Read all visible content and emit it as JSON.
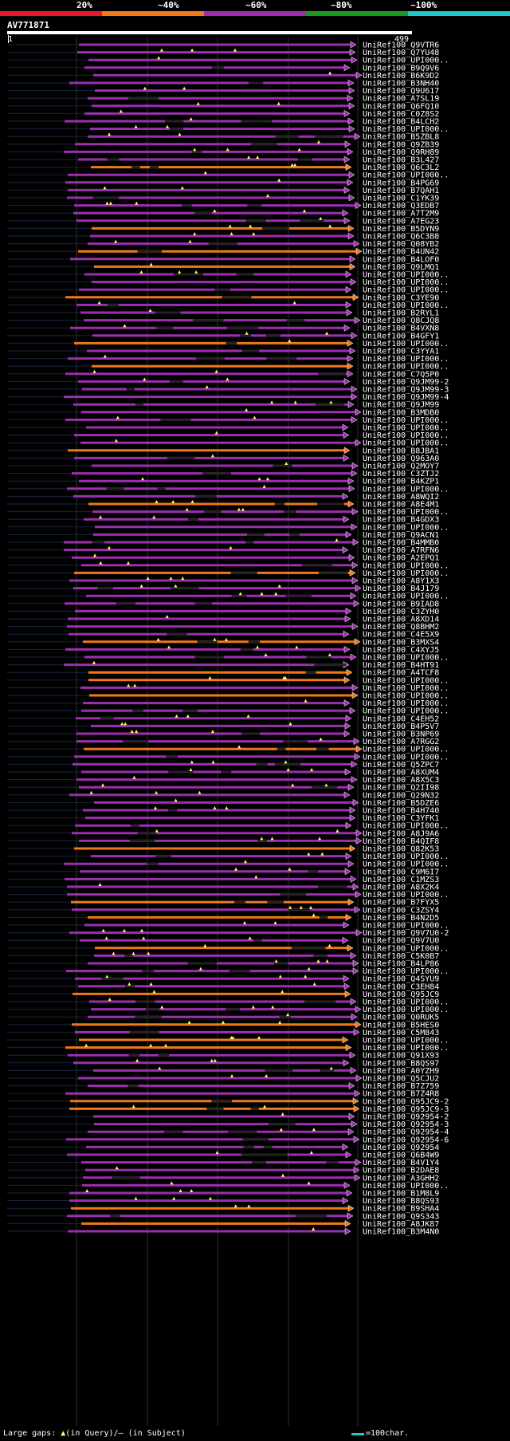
{
  "query": {
    "accession": "AV771871",
    "start_label": "1",
    "end_label": "499",
    "length": 499
  },
  "identity_scale": [
    {
      "label": "20%",
      "color": "#e8192c"
    },
    {
      "label": "~40%",
      "color": "#f07818"
    },
    {
      "label": "~60%",
      "color": "#9b2fae"
    },
    {
      "label": "~80%",
      "color": "#1a9a22"
    },
    {
      "label": "~100%",
      "color": "#1ec8c8"
    }
  ],
  "legend": {
    "prefix": "Large gaps:",
    "query_gap": "(in Query)/",
    "subject_gap": "(in Subject)",
    "scale_text": "=100char."
  },
  "hits": [
    {
      "name": "UniRef100_Q9VTR6",
      "identity": "~60%"
    },
    {
      "name": "UniRef100_Q7YU48",
      "identity": "~60%"
    },
    {
      "name": "UniRef100_UPI000..",
      "identity": "~60%"
    },
    {
      "name": "UniRef100_B9Q9V6",
      "identity": "~60%"
    },
    {
      "name": "UniRef100_B6K9D2",
      "identity": "~60%"
    },
    {
      "name": "UniRef100_B3NH40",
      "identity": "~60%"
    },
    {
      "name": "UniRef100_Q9U617",
      "identity": "~60%"
    },
    {
      "name": "UniRef100_A7SL19",
      "identity": "~60%"
    },
    {
      "name": "UniRef100_Q6FQ10",
      "identity": "~60%"
    },
    {
      "name": "UniRef100_C0Z8S2",
      "identity": "~60%"
    },
    {
      "name": "UniRef100_B4LCH2",
      "identity": "~60%"
    },
    {
      "name": "UniRef100_UPI000..",
      "identity": "~60%"
    },
    {
      "name": "UniRef100_B5ZBL8",
      "identity": "~60%"
    },
    {
      "name": "UniRef100_Q9ZB39",
      "identity": "~60%"
    },
    {
      "name": "UniRef100_Q9RH89",
      "identity": "~60%"
    },
    {
      "name": "UniRef100_B3L427",
      "identity": "~60%"
    },
    {
      "name": "UniRef100_Q6C3L2",
      "identity": "~40%"
    },
    {
      "name": "UniRef100_UPI000..",
      "identity": "~60%"
    },
    {
      "name": "UniRef100_B4PG69",
      "identity": "~60%"
    },
    {
      "name": "UniRef100_B7QAH1",
      "identity": "~60%"
    },
    {
      "name": "UniRef100_C1YK39",
      "identity": "~60%"
    },
    {
      "name": "UniRef100_Q3EDB7",
      "identity": "~60%"
    },
    {
      "name": "UniRef100_A7T2M9",
      "identity": "~60%"
    },
    {
      "name": "UniRef100_A7EG23",
      "identity": "~60%"
    },
    {
      "name": "UniRef100_B5DYN9",
      "identity": "~40%"
    },
    {
      "name": "UniRef100_Q6C3B8",
      "identity": "~60%"
    },
    {
      "name": "UniRef100_Q08YB2",
      "identity": "~60%"
    },
    {
      "name": "UniRef100_B4UN42",
      "identity": "~40%"
    },
    {
      "name": "UniRef100_B4LOF0",
      "identity": "~60%"
    },
    {
      "name": "UniRef100_Q9LMQ1",
      "identity": "~40%"
    },
    {
      "name": "UniRef100_UPI000..",
      "identity": "~60%"
    },
    {
      "name": "UniRef100_UPI000..",
      "identity": "~60%"
    },
    {
      "name": "UniRef100_UPI000..",
      "identity": "~60%"
    },
    {
      "name": "UniRef100_C3YE90",
      "identity": "~40%"
    },
    {
      "name": "UniRef100_UPI000..",
      "identity": "~60%"
    },
    {
      "name": "UniRef100_B2RYL1",
      "identity": "~60%"
    },
    {
      "name": "UniRef100_Q8CJQ8",
      "identity": "~60%"
    },
    {
      "name": "UniRef100_B4VXN8",
      "identity": "~60%"
    },
    {
      "name": "UniRef100_B4GFY1",
      "identity": "~60%"
    },
    {
      "name": "UniRef100_UPI000..",
      "identity": "~40%"
    },
    {
      "name": "UniRef100_C3YYA1",
      "identity": "~60%"
    },
    {
      "name": "UniRef100_UPI000..",
      "identity": "~60%"
    },
    {
      "name": "UniRef100_UPI000..",
      "identity": "~40%"
    },
    {
      "name": "UniRef100_C7Q5P0",
      "identity": "~60%"
    },
    {
      "name": "UniRef100_Q9JM99-2",
      "identity": "~60%"
    },
    {
      "name": "UniRef100_Q9JM99-3",
      "identity": "~60%"
    },
    {
      "name": "UniRef100_Q9JM99-4",
      "identity": "~60%"
    },
    {
      "name": "UniRef100_Q9JM99",
      "identity": "~60%"
    },
    {
      "name": "UniRef100_B3MDB0",
      "identity": "~60%"
    },
    {
      "name": "UniRef100_UPI000..",
      "identity": "~60%"
    },
    {
      "name": "UniRef100_UPI000..",
      "identity": "~60%"
    },
    {
      "name": "UniRef100_UPI000..",
      "identity": "~60%"
    },
    {
      "name": "UniRef100_UPI000..",
      "identity": "~60%"
    },
    {
      "name": "UniRef100_B8JBA1",
      "identity": "~40%"
    },
    {
      "name": "UniRef100_Q963A0",
      "identity": "~60%"
    },
    {
      "name": "UniRef100_Q2MOY7",
      "identity": "~60%"
    },
    {
      "name": "UniRef100_C3ZTJ2",
      "identity": "~60%"
    },
    {
      "name": "UniRef100_B4KZP1",
      "identity": "~60%"
    },
    {
      "name": "UniRef100_UPI000..",
      "identity": "~60%"
    },
    {
      "name": "UniRef100_A8WQI2",
      "identity": "~60%"
    },
    {
      "name": "UniRef100_A8E4M1",
      "identity": "~40%"
    },
    {
      "name": "UniRef100_UPI000..",
      "identity": "~60%"
    },
    {
      "name": "UniRef100_B4GDX3",
      "identity": "~60%"
    },
    {
      "name": "UniRef100_UPI000..",
      "identity": "~60%"
    },
    {
      "name": "UniRef100_Q9ACN1",
      "identity": "~60%"
    },
    {
      "name": "UniRef100_B4MMB0",
      "identity": "~60%"
    },
    {
      "name": "UniRef100_A7RFN6",
      "identity": "~60%"
    },
    {
      "name": "UniRef100_A2EPQ1",
      "identity": "~60%"
    },
    {
      "name": "UniRef100_UPI000..",
      "identity": "~60%"
    },
    {
      "name": "UniRef100_UPI000..",
      "identity": "~40%"
    },
    {
      "name": "UniRef100_A8Y1X3",
      "identity": "~60%"
    },
    {
      "name": "UniRef100_B4J179",
      "identity": "~60%"
    },
    {
      "name": "UniRef100_UPI000..",
      "identity": "~60%"
    },
    {
      "name": "UniRef100_B9IAD8",
      "identity": "~60%"
    },
    {
      "name": "UniRef100_C3ZYH0",
      "identity": "~60%"
    },
    {
      "name": "UniRef100_A8XD14",
      "identity": "~60%"
    },
    {
      "name": "UniRef100_Q8BHM2",
      "identity": "~60%"
    },
    {
      "name": "UniRef100_C4E5X9",
      "identity": "~60%"
    },
    {
      "name": "UniRef100_B3MXS4",
      "identity": "~40%"
    },
    {
      "name": "UniRef100_C4XYJ5",
      "identity": "~60%"
    },
    {
      "name": "UniRef100_UPI000..",
      "identity": "~60%"
    },
    {
      "name": "UniRef100_B4HT91",
      "identity": "~60%"
    },
    {
      "name": "UniRef100_A4TCF8",
      "identity": "~40%"
    },
    {
      "name": "UniRef100_UPI000..",
      "identity": "~40%"
    },
    {
      "name": "UniRef100_UPI000..",
      "identity": "~60%"
    },
    {
      "name": "UniRef100_UPI000..",
      "identity": "~40%"
    },
    {
      "name": "UniRef100_UPI000..",
      "identity": "~60%"
    },
    {
      "name": "UniRef100_UPI000..",
      "identity": "~60%"
    },
    {
      "name": "UniRef100_C4EH52",
      "identity": "~60%"
    },
    {
      "name": "UniRef100_B4P5V7",
      "identity": "~60%"
    },
    {
      "name": "UniRef100_B3NP69",
      "identity": "~60%"
    },
    {
      "name": "UniRef100_A7RGG2",
      "identity": "~60%"
    },
    {
      "name": "UniRef100_UPI000..",
      "identity": "~40%"
    },
    {
      "name": "UniRef100_UPI000..",
      "identity": "~60%"
    },
    {
      "name": "UniRef100_Q5ZPC7",
      "identity": "~60%"
    },
    {
      "name": "UniRef100_A8XUM4",
      "identity": "~60%"
    },
    {
      "name": "UniRef100_A8X5C3",
      "identity": "~60%"
    },
    {
      "name": "UniRef100_Q2II98",
      "identity": "~60%"
    },
    {
      "name": "UniRef100_Q29N32",
      "identity": "~60%"
    },
    {
      "name": "UniRef100_B5DZE6",
      "identity": "~60%"
    },
    {
      "name": "UniRef100_B4H740",
      "identity": "~60%"
    },
    {
      "name": "UniRef100_C3YFK1",
      "identity": "~60%"
    },
    {
      "name": "UniRef100_UPI000..",
      "identity": "~60%"
    },
    {
      "name": "UniRef100_A8J9A6",
      "identity": "~60%"
    },
    {
      "name": "UniRef100_B4QIF8",
      "identity": "~60%"
    },
    {
      "name": "UniRef100_Q82K53",
      "identity": "~40%"
    },
    {
      "name": "UniRef100_UPI000..",
      "identity": "~60%"
    },
    {
      "name": "UniRef100_UPI000..",
      "identity": "~60%"
    },
    {
      "name": "UniRef100_C9M6I7",
      "identity": "~60%"
    },
    {
      "name": "UniRef100_C1MZS3",
      "identity": "~60%"
    },
    {
      "name": "UniRef100_A8X2K4",
      "identity": "~60%"
    },
    {
      "name": "UniRef100_UPI000..",
      "identity": "~60%"
    },
    {
      "name": "UniRef100_B7FYX5",
      "identity": "~40%"
    },
    {
      "name": "UniRef100_C3ZSY4",
      "identity": "~60%"
    },
    {
      "name": "UniRef100_B4N2D5",
      "identity": "~40%"
    },
    {
      "name": "UniRef100_UPI000..",
      "identity": "~60%"
    },
    {
      "name": "UniRef100_Q9V7U0-2",
      "identity": "~60%"
    },
    {
      "name": "UniRef100_Q9V7U0",
      "identity": "~60%"
    },
    {
      "name": "UniRef100_UPI000..",
      "identity": "~40%"
    },
    {
      "name": "UniRef100_C5K0B7",
      "identity": "~60%"
    },
    {
      "name": "UniRef100_B4LP86",
      "identity": "~60%"
    },
    {
      "name": "UniRef100_UPI000..",
      "identity": "~60%"
    },
    {
      "name": "UniRef100_Q4SYU9",
      "identity": "~60%"
    },
    {
      "name": "UniRef100_C3EH84",
      "identity": "~60%"
    },
    {
      "name": "UniRef100_Q95JC9",
      "identity": "~40%"
    },
    {
      "name": "UniRef100_UPI000..",
      "identity": "~60%"
    },
    {
      "name": "UniRef100_UPI000..",
      "identity": "~60%"
    },
    {
      "name": "UniRef100_Q0RUK5",
      "identity": "~60%"
    },
    {
      "name": "UniRef100_B5HES0",
      "identity": "~40%"
    },
    {
      "name": "UniRef100_C5M843",
      "identity": "~60%"
    },
    {
      "name": "UniRef100_UPI000..",
      "identity": "~40%"
    },
    {
      "name": "UniRef100_UPI000..",
      "identity": "~40%"
    },
    {
      "name": "UniRef100_Q91X93",
      "identity": "~60%"
    },
    {
      "name": "UniRef100_B8QS97",
      "identity": "~60%"
    },
    {
      "name": "UniRef100_A0YZH9",
      "identity": "~60%"
    },
    {
      "name": "UniRef100_Q5CJU2",
      "identity": "~60%"
    },
    {
      "name": "UniRef100_B7Z759",
      "identity": "~60%"
    },
    {
      "name": "UniRef100_B7Z4R8",
      "identity": "~60%"
    },
    {
      "name": "UniRef100_Q95JC9-2",
      "identity": "~40%"
    },
    {
      "name": "UniRef100_Q95JC9-3",
      "identity": "~40%"
    },
    {
      "name": "UniRef100_Q92954-2",
      "identity": "~60%"
    },
    {
      "name": "UniRef100_Q92954-3",
      "identity": "~60%"
    },
    {
      "name": "UniRef100_Q92954-4",
      "identity": "~60%"
    },
    {
      "name": "UniRef100_Q92954-6",
      "identity": "~60%"
    },
    {
      "name": "UniRef100_Q92954",
      "identity": "~60%"
    },
    {
      "name": "UniRef100_Q6B4W9",
      "identity": "~60%"
    },
    {
      "name": "UniRef100_B4V1Y4",
      "identity": "~60%"
    },
    {
      "name": "UniRef100_B2DAE8",
      "identity": "~60%"
    },
    {
      "name": "UniRef100_A3GHH2",
      "identity": "~60%"
    },
    {
      "name": "UniRef100_UPI000..",
      "identity": "~60%"
    },
    {
      "name": "UniRef100_B1M8L9",
      "identity": "~60%"
    },
    {
      "name": "UniRef100_B8QS93",
      "identity": "~60%"
    },
    {
      "name": "UniRef100_B9SHA4",
      "identity": "~40%"
    },
    {
      "name": "UniRef100_Q9S343",
      "identity": "~60%"
    },
    {
      "name": "UniRef100_A8JK87",
      "identity": "~40%"
    },
    {
      "name": "UniRef100_B3M4N0",
      "identity": "~60%"
    }
  ]
}
